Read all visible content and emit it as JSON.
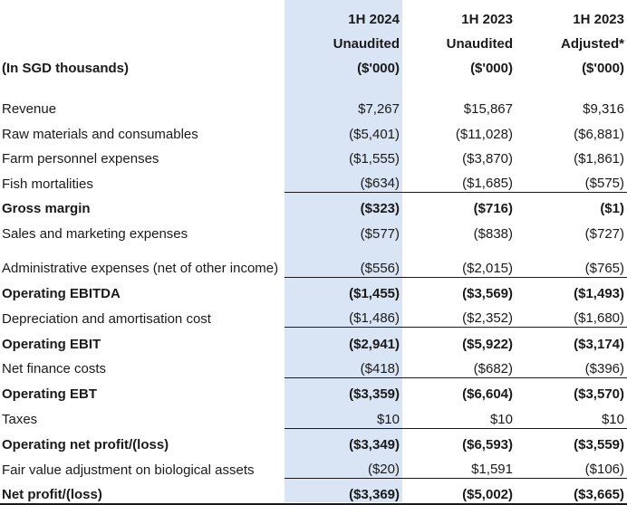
{
  "header": {
    "row1": [
      "",
      "1H 2024",
      "1H 2023",
      "1H 2023"
    ],
    "row2": [
      "",
      "Unaudited",
      "Unaudited",
      "Adjusted*"
    ],
    "row3": [
      "(In SGD thousands)",
      "($'000)",
      "($'000)",
      "($'000)"
    ]
  },
  "rows": [
    {
      "label": "Revenue",
      "v1": "$7,267",
      "v2": "$15,867",
      "v3": "$9,316"
    },
    {
      "label": "Raw materials and consumables",
      "v1": "($5,401)",
      "v2": "($11,028)",
      "v3": "($6,881)"
    },
    {
      "label": "Farm personnel expenses",
      "v1": "($1,555)",
      "v2": "($3,870)",
      "v3": "($1,861)"
    },
    {
      "label": "Fish mortalities",
      "v1": "($634)",
      "v2": "($1,685)",
      "v3": "($575)"
    },
    {
      "label": "Gross margin",
      "v1": "($323)",
      "v2": "($716)",
      "v3": "($1)"
    },
    {
      "label": "Sales and marketing expenses",
      "v1": "($577)",
      "v2": "($838)",
      "v3": "($727)"
    },
    {
      "label": "Administrative expenses (net of other income)",
      "v1": "($556)",
      "v2": "($2,015)",
      "v3": "($765)"
    },
    {
      "label": "Operating EBITDA",
      "v1": "($1,455)",
      "v2": "($3,569)",
      "v3": "($1,493)"
    },
    {
      "label": "Depreciation and amortisation cost",
      "v1": "($1,486)",
      "v2": "($2,352)",
      "v3": "($1,680)"
    },
    {
      "label": "Operating EBIT",
      "v1": "($2,941)",
      "v2": "($5,922)",
      "v3": "($3,174)"
    },
    {
      "label": "Net finance costs",
      "v1": "($418)",
      "v2": "($682)",
      "v3": "($396)"
    },
    {
      "label": "Operating EBT",
      "v1": "($3,359)",
      "v2": "($6,604)",
      "v3": "($3,570)"
    },
    {
      "label": "Taxes",
      "v1": "$10",
      "v2": "$10",
      "v3": "$10"
    },
    {
      "label": "Operating net profit/(loss)",
      "v1": "($3,349)",
      "v2": "($6,593)",
      "v3": "($3,559)"
    },
    {
      "label": "Fair value adjustment on biological assets",
      "v1": "($20)",
      "v2": "$1,591",
      "v3": "($106)"
    },
    {
      "label": "Net profit/(loss)",
      "v1": "($3,369)",
      "v2": "($5,002)",
      "v3": "($3,665)"
    }
  ],
  "colors": {
    "highlight_column": "#d9e4f5",
    "text": "#1a1a1a",
    "rule": "#1a1a1a"
  }
}
